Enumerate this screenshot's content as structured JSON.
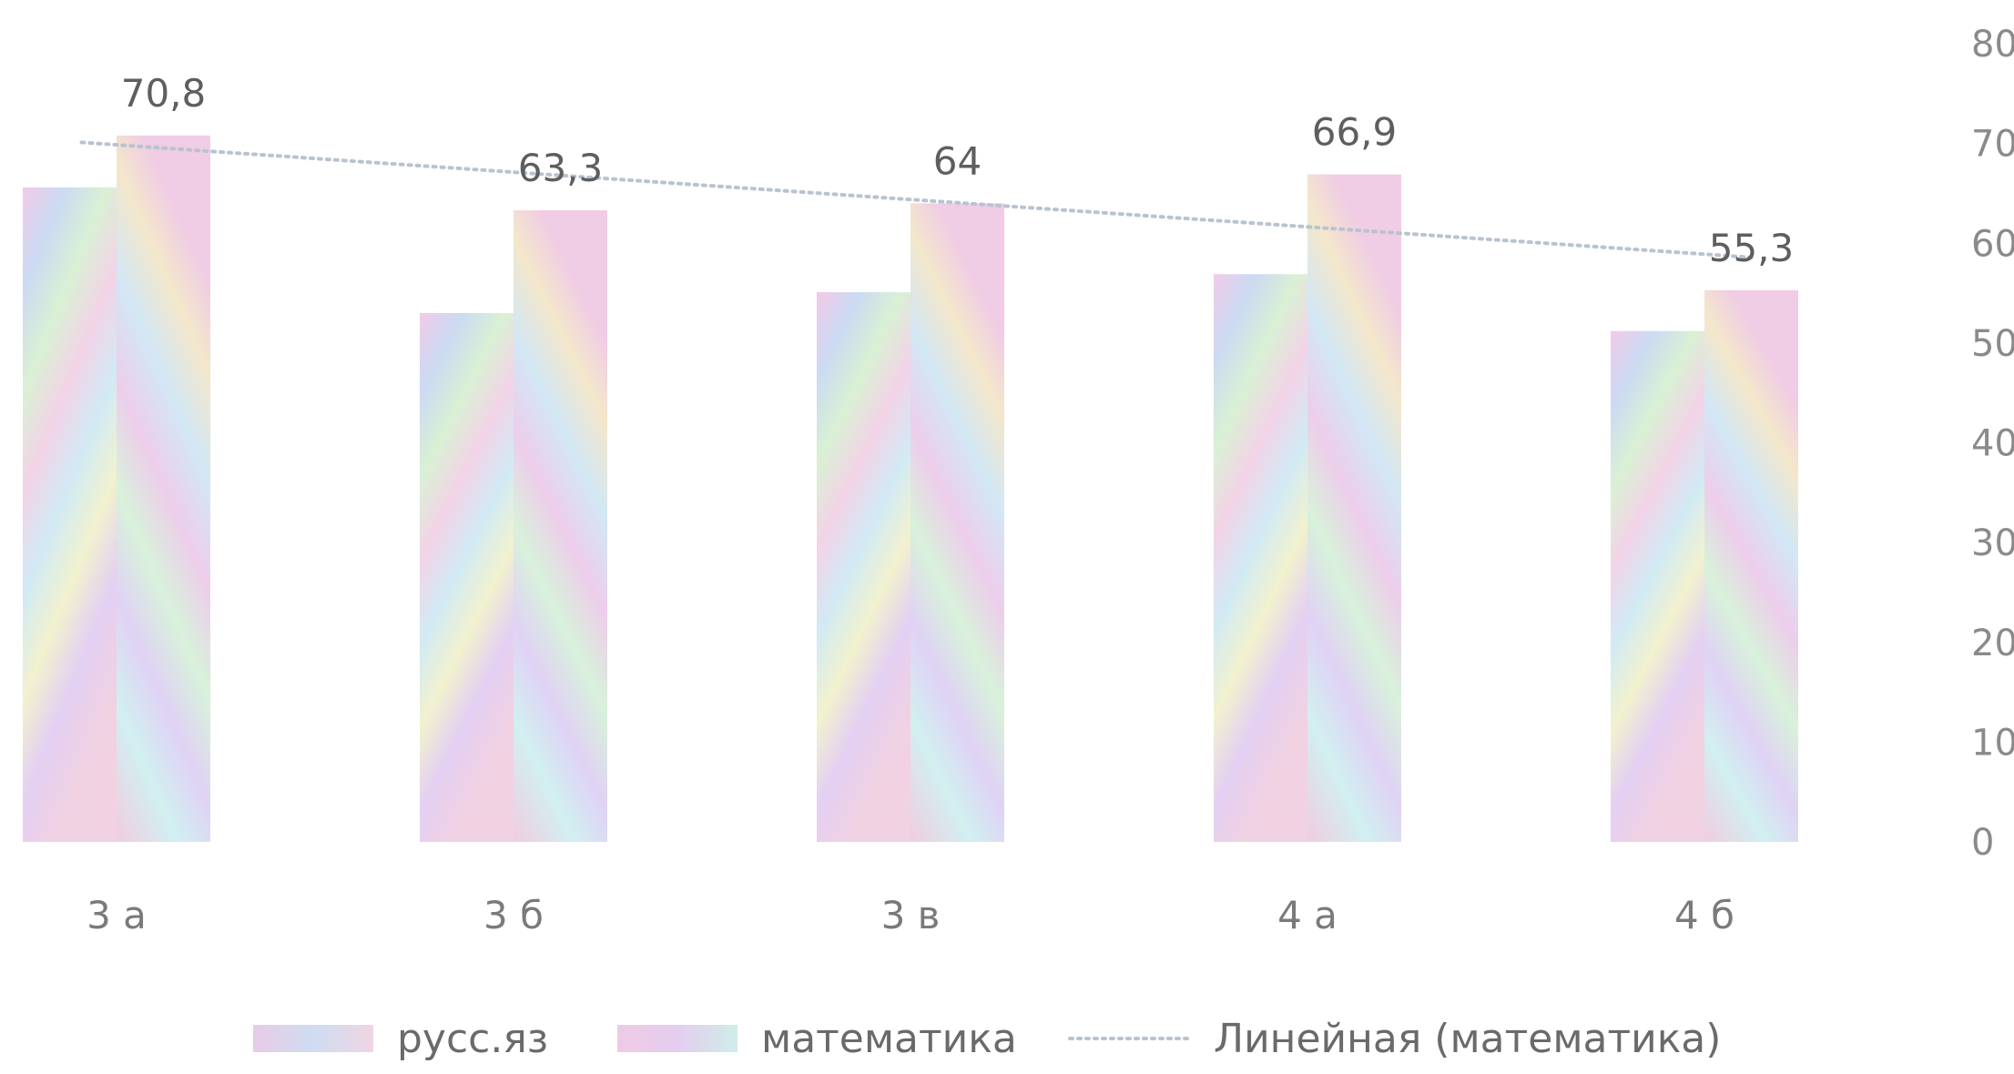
{
  "chart_data": {
    "type": "bar",
    "categories": [
      "3 а",
      "3 б",
      "3 в",
      "4 а",
      "4 б"
    ],
    "series": [
      {
        "name": "русс.яз",
        "values": [
          65.6,
          53.0,
          55.1,
          56.9,
          51.2
        ]
      },
      {
        "name": "математика",
        "values": [
          70.8,
          63.3,
          64,
          66.9,
          55.3
        ],
        "labels": [
          "70,8",
          "63,3",
          "64",
          "66,9",
          "55,3"
        ]
      }
    ],
    "trendline": {
      "name": "Линейная (математика)",
      "series": "математика",
      "type": "linear"
    },
    "ylim": [
      0,
      80
    ],
    "yticks": [
      0,
      10,
      20,
      30,
      40,
      50,
      60,
      70,
      80
    ],
    "y_axis_position": "right",
    "legend": "bottom",
    "grid": false
  }
}
